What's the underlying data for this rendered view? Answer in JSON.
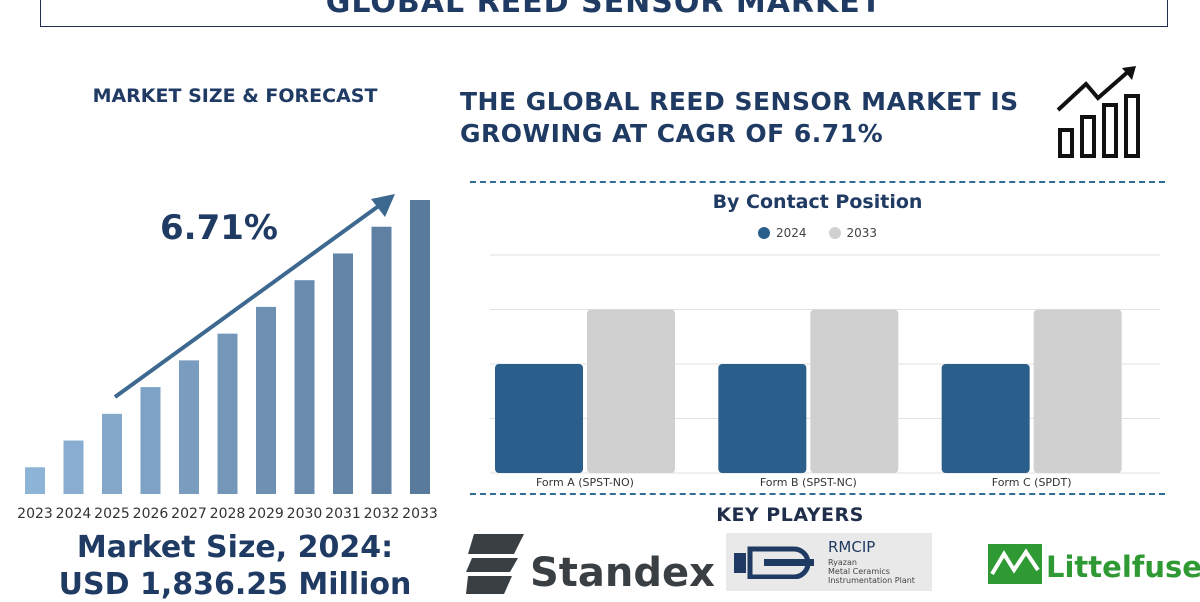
{
  "title": "GLOBAL REED SENSOR MARKET",
  "left_panel": {
    "heading": "MARKET SIZE & FORECAST",
    "cagr_label": "6.71%",
    "market_size_line1": "Market Size, 2024:",
    "market_size_line2": "USD 1,836.25 Million"
  },
  "headline": {
    "line1": "THE GLOBAL REED SENSOR MARKET IS",
    "line2": "GROWING AT CAGR OF 6.71%"
  },
  "key_players": {
    "title": "KEY PLAYERS",
    "standex": "Standex",
    "rmcip": "RMCIP",
    "rmcip_sub1": "Ryazan",
    "rmcip_sub2": "Metal Ceramics",
    "rmcip_sub3": "Instrumentation Plant",
    "littelfuse": "Littelfuse"
  },
  "colors": {
    "navy": "#1f3a63",
    "series_2024": "#2a5f8c",
    "series_2033": "#d0d0d0",
    "growth_bar_light": "#8db3d6",
    "growth_bar_dark": "#5a7a9c",
    "littelfuse_green": "#2f9a34"
  },
  "chart_data": [
    {
      "type": "bar",
      "categories": [
        "2023",
        "2024",
        "2025",
        "2026",
        "2027",
        "2028",
        "2029",
        "2030",
        "2031",
        "2032",
        "2033"
      ],
      "values": [
        1,
        2,
        3,
        4,
        5,
        6,
        7,
        8,
        9,
        10,
        11
      ],
      "title": "",
      "annotation": "6.71%",
      "trend_arrow": true
    },
    {
      "type": "bar",
      "title": "By Contact Position",
      "categories": [
        "Form A (SPST-NO)",
        "Form B (SPST-NC)",
        "Form C (SPDT)"
      ],
      "series": [
        {
          "name": "2024",
          "values": [
            2,
            2,
            2
          ]
        },
        {
          "name": "2033",
          "values": [
            3,
            3,
            3
          ]
        }
      ],
      "ylim": [
        0,
        4
      ],
      "grid": true,
      "legend": "top-center"
    }
  ]
}
